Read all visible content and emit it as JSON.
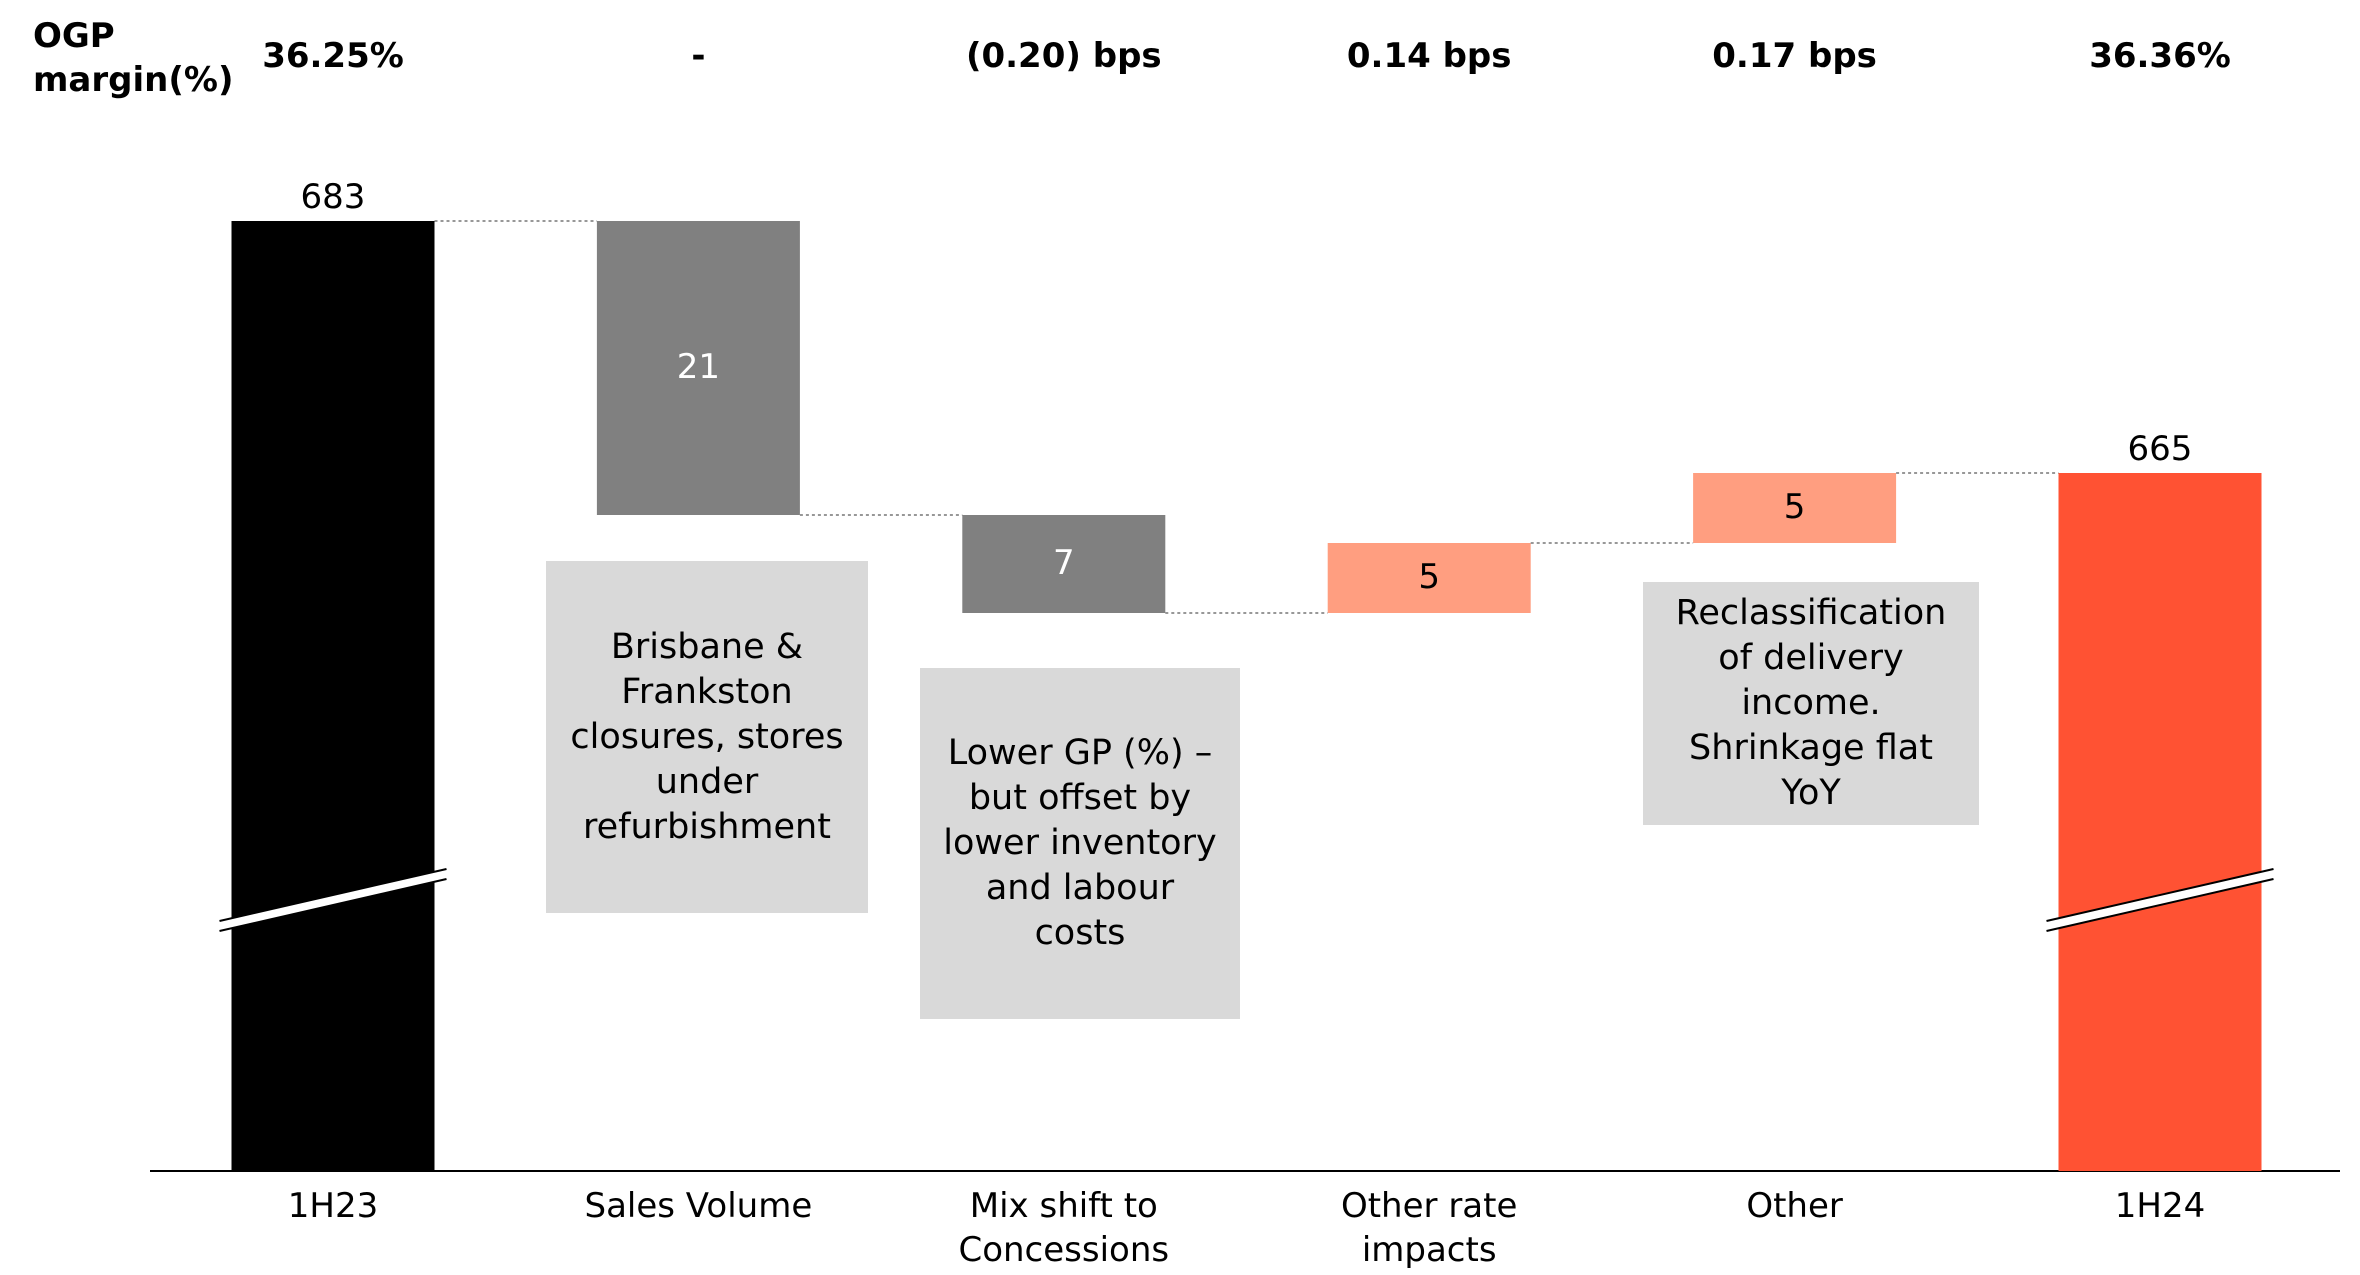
{
  "chart_data": {
    "type": "waterfall",
    "margin_label": "OGP margin(%)",
    "margins": [
      "36.25%",
      "-",
      "(0.20) bps",
      "0.14 bps",
      "0.17 bps",
      "36.36%"
    ],
    "categories": [
      "1H23",
      "Sales Volume",
      "Mix shift to Concessions",
      "Other rate impacts",
      "Other",
      "1H24"
    ],
    "measures": [
      "absolute",
      "relative",
      "relative",
      "relative",
      "relative",
      "total"
    ],
    "values": [
      683,
      -21,
      -7,
      5,
      5,
      665
    ],
    "value_labels": [
      "683",
      "21",
      "7",
      "5",
      "5",
      "665"
    ],
    "colors": [
      "#000000",
      "#808080",
      "#808080",
      "#ff9e80",
      "#ff9e80",
      "#ff5233"
    ],
    "axis_break": true,
    "annotations": [
      "Brisbane & Frankston closures, stores under refurbishment",
      "Lower GP (%) – but offset by lower inventory and labour costs",
      "Reclassification of delivery income. Shrinkage flat YoY"
    ]
  }
}
